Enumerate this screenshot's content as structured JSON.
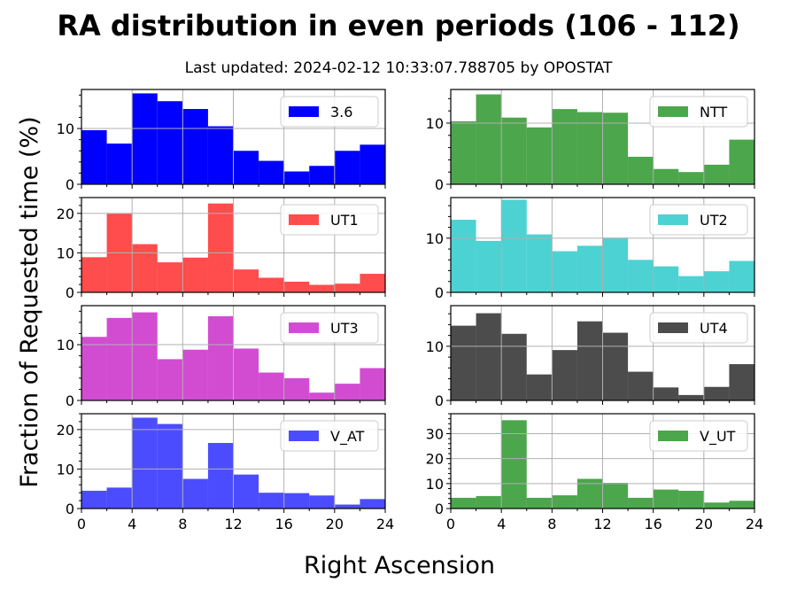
{
  "header": {
    "title": "RA distribution in even periods (106 - 112)",
    "subtitle": "Last updated: 2024-02-12 10:33:07.788705 by OPOSTAT"
  },
  "chart_data": {
    "type": "bar",
    "xlabel": "Right Ascension",
    "ylabel": "Fraction of Requested time (%)",
    "xlim": [
      0,
      24
    ],
    "xticks": [
      0,
      4,
      8,
      12,
      16,
      20,
      24
    ],
    "bin_edges": [
      0,
      2,
      4,
      6,
      8,
      10,
      12,
      14,
      16,
      18,
      20,
      22,
      24
    ],
    "grid": true,
    "legend_position": "top-right",
    "panels": [
      {
        "name": "3.6",
        "color": "#0000ff",
        "opacity": 1.0,
        "ylim": [
          0,
          17
        ],
        "yticks": [
          0,
          10
        ],
        "values": [
          9.7,
          7.3,
          16.3,
          14.9,
          13.5,
          10.4,
          6.0,
          4.2,
          2.3,
          3.3,
          6.0,
          7.1
        ]
      },
      {
        "name": "NTT",
        "color": "#008000",
        "opacity": 0.7,
        "ylim": [
          0,
          15.5
        ],
        "yticks": [
          0,
          10
        ],
        "values": [
          10.3,
          14.7,
          10.9,
          9.3,
          12.3,
          11.8,
          11.7,
          4.5,
          2.5,
          2.0,
          3.2,
          7.3
        ]
      },
      {
        "name": "UT1",
        "color": "#ff0000",
        "opacity": 0.7,
        "ylim": [
          0,
          24
        ],
        "yticks": [
          0,
          10,
          20
        ],
        "values": [
          8.9,
          20.0,
          12.2,
          7.6,
          8.8,
          22.5,
          5.8,
          3.7,
          2.7,
          1.9,
          2.2,
          4.7
        ]
      },
      {
        "name": "UT2",
        "color": "#00bfbf",
        "opacity": 0.7,
        "ylim": [
          0,
          17.5
        ],
        "yticks": [
          0,
          10
        ],
        "values": [
          13.4,
          9.5,
          17.1,
          10.7,
          7.6,
          8.6,
          10.1,
          6.0,
          4.8,
          3.0,
          3.9,
          5.8
        ]
      },
      {
        "name": "UT3",
        "color": "#bf00bf",
        "opacity": 0.7,
        "ylim": [
          0,
          17
        ],
        "yticks": [
          0,
          10
        ],
        "values": [
          11.4,
          14.8,
          15.8,
          7.4,
          9.1,
          15.1,
          9.3,
          5.0,
          4.0,
          1.4,
          3.0,
          5.8
        ]
      },
      {
        "name": "UT4",
        "color": "#000000",
        "opacity": 0.7,
        "ylim": [
          0,
          17.5
        ],
        "yticks": [
          0,
          10
        ],
        "values": [
          13.8,
          16.1,
          12.3,
          4.8,
          9.3,
          14.6,
          12.5,
          5.3,
          2.4,
          1.0,
          2.5,
          6.7
        ]
      },
      {
        "name": "V_AT",
        "color": "#0000ff",
        "opacity": 0.7,
        "ylim": [
          0,
          24
        ],
        "yticks": [
          0,
          10,
          20
        ],
        "values": [
          4.5,
          5.3,
          23.0,
          21.4,
          7.5,
          16.6,
          8.6,
          4.0,
          3.9,
          3.3,
          1.0,
          2.4
        ]
      },
      {
        "name": "V_UT",
        "color": "#008000",
        "opacity": 0.7,
        "ylim": [
          0,
          38
        ],
        "yticks": [
          0,
          10,
          20,
          30
        ],
        "values": [
          4.3,
          5.0,
          35.4,
          4.3,
          5.3,
          11.9,
          10.3,
          4.3,
          7.6,
          7.1,
          2.4,
          3.1
        ]
      }
    ]
  }
}
